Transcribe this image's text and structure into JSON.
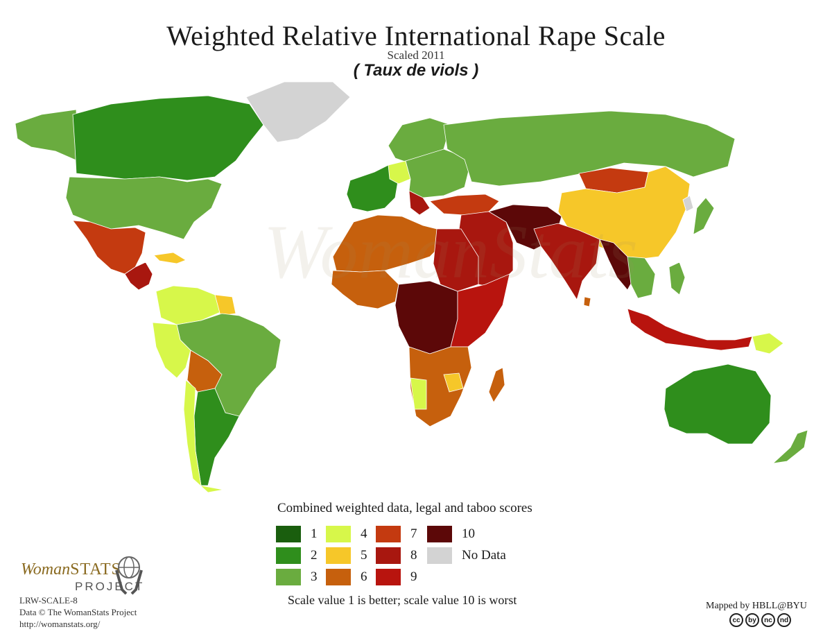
{
  "title": "Weighted Relative International Rape Scale",
  "subtitle": "Scaled 2011",
  "annotation": "( Taux de viols )",
  "colors": {
    "1": "#1a5e0e",
    "2": "#2f8e1c",
    "3": "#6aac3f",
    "4": "#d7f74a",
    "5": "#f6c729",
    "6": "#c6600d",
    "7": "#c43a10",
    "8": "#a8170f",
    "9": "#b8140e",
    "10": "#5c0808",
    "nodata": "#d3d3d3",
    "ocean": "#ffffff"
  },
  "legend": {
    "title": "Combined weighted data, legal and taboo scores",
    "items": [
      {
        "label": "1",
        "key": "1"
      },
      {
        "label": "2",
        "key": "2"
      },
      {
        "label": "3",
        "key": "3"
      },
      {
        "label": "4",
        "key": "4"
      },
      {
        "label": "5",
        "key": "5"
      },
      {
        "label": "6",
        "key": "6"
      },
      {
        "label": "7",
        "key": "7"
      },
      {
        "label": "8",
        "key": "8"
      },
      {
        "label": "9",
        "key": "9"
      },
      {
        "label": "10",
        "key": "10"
      },
      {
        "label": "No Data",
        "key": "nodata"
      }
    ],
    "note": "Scale value 1 is better; scale value 10 is worst"
  },
  "regions": [
    {
      "name": "canada",
      "score": "2"
    },
    {
      "name": "alaska",
      "score": "3"
    },
    {
      "name": "greenland",
      "score": "nodata"
    },
    {
      "name": "usa",
      "score": "3"
    },
    {
      "name": "mexico",
      "score": "7"
    },
    {
      "name": "central-america",
      "score": "8"
    },
    {
      "name": "cuba",
      "score": "5"
    },
    {
      "name": "colombia-venezuela",
      "score": "4"
    },
    {
      "name": "peru-ecuador",
      "score": "4"
    },
    {
      "name": "bolivia",
      "score": "6"
    },
    {
      "name": "brazil",
      "score": "3"
    },
    {
      "name": "argentina",
      "score": "2"
    },
    {
      "name": "chile",
      "score": "4"
    },
    {
      "name": "guianas",
      "score": "5"
    },
    {
      "name": "russia",
      "score": "3"
    },
    {
      "name": "scandinavia",
      "score": "3"
    },
    {
      "name": "western-europe",
      "score": "2"
    },
    {
      "name": "germany",
      "score": "4"
    },
    {
      "name": "eastern-europe",
      "score": "3"
    },
    {
      "name": "balkans",
      "score": "8"
    },
    {
      "name": "north-africa",
      "score": "6"
    },
    {
      "name": "egypt-sudan",
      "score": "8"
    },
    {
      "name": "west-africa",
      "score": "6"
    },
    {
      "name": "central-africa",
      "score": "10"
    },
    {
      "name": "east-africa",
      "score": "9"
    },
    {
      "name": "southern-africa",
      "score": "6"
    },
    {
      "name": "namibia",
      "score": "4"
    },
    {
      "name": "zimbabwe",
      "score": "5"
    },
    {
      "name": "madagascar",
      "score": "6"
    },
    {
      "name": "middle-east",
      "score": "8"
    },
    {
      "name": "iran-afghanistan",
      "score": "10"
    },
    {
      "name": "turkey-caucasus",
      "score": "7"
    },
    {
      "name": "india",
      "score": "8"
    },
    {
      "name": "sri-lanka",
      "score": "6"
    },
    {
      "name": "mongolia",
      "score": "7"
    },
    {
      "name": "china",
      "score": "5"
    },
    {
      "name": "korea",
      "score": "nodata"
    },
    {
      "name": "japan",
      "score": "3"
    },
    {
      "name": "myanmar",
      "score": "10"
    },
    {
      "name": "southeast-asia",
      "score": "3"
    },
    {
      "name": "indonesia",
      "score": "9"
    },
    {
      "name": "papua-new-guinea",
      "score": "4"
    },
    {
      "name": "philippines",
      "score": "3"
    },
    {
      "name": "australia",
      "score": "2"
    },
    {
      "name": "new-zealand",
      "score": "3"
    }
  ],
  "brand": {
    "line1_italic": "Woman",
    "line1": "STATS",
    "line2": "PROJECT",
    "code": "LRW-SCALE-8",
    "data_credit": "Data © The WomanStats Project",
    "url": "http://womanstats.org/"
  },
  "mapped_by": "Mapped by HBLL@BYU",
  "cc_icons": [
    "cc",
    "by",
    "nc",
    "nd"
  ]
}
